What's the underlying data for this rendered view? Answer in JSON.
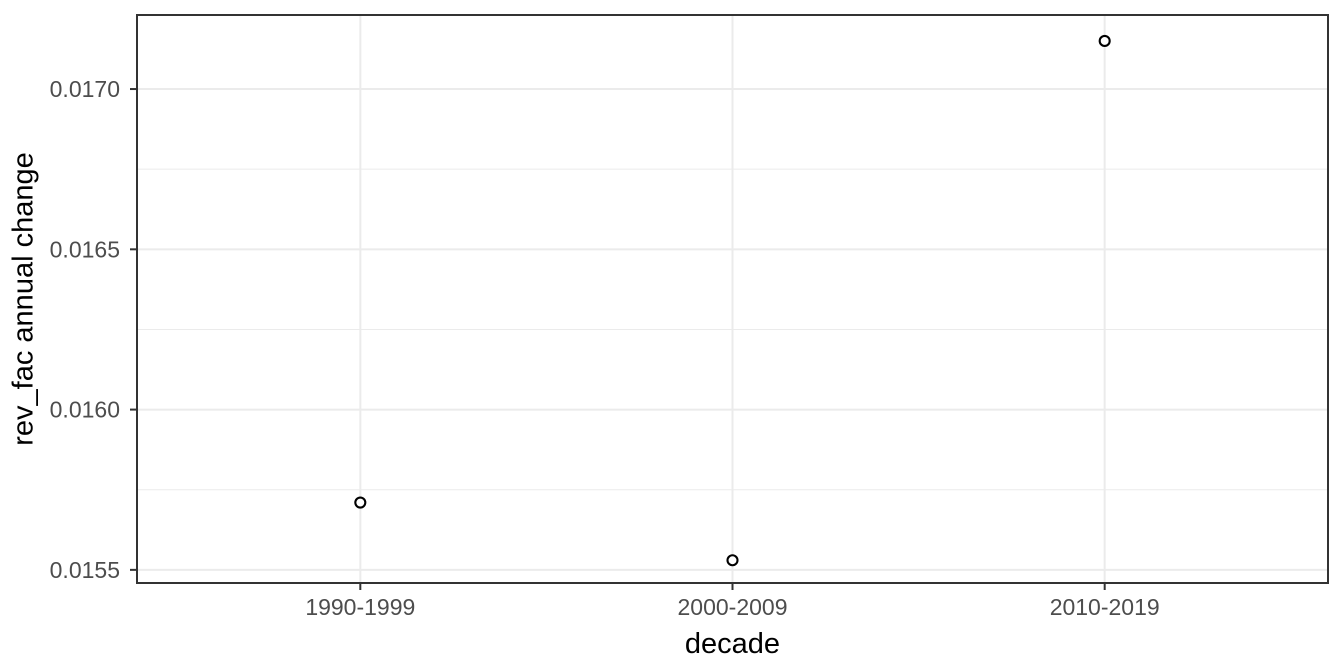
{
  "chart_data": {
    "type": "scatter",
    "title": "",
    "xlabel": "decade",
    "ylabel": "rev_fac annual change",
    "categories": [
      "1990-1999",
      "2000-2009",
      "2010-2019"
    ],
    "values": [
      0.01571,
      0.01553,
      0.01715
    ],
    "ylim": [
      0.015459,
      0.017231
    ],
    "y_major_ticks": [
      0.0155,
      0.016,
      0.0165,
      0.017
    ],
    "y_tick_labels": [
      "0.0155",
      "0.0160",
      "0.0165",
      "0.0170"
    ],
    "y_minor_ticks": [
      0.01575,
      0.01625,
      0.01675
    ],
    "grid": true,
    "legend": false,
    "style": {
      "background": "#ffffff",
      "panel_background": "#ffffff",
      "panel_border_color": "#333333",
      "grid_major_color": "#ebebeb",
      "grid_minor_color": "#ebebeb",
      "tick_color": "#333333",
      "tick_label_color": "#4d4d4d",
      "axis_title_color": "#000000",
      "point_stroke": "#000000",
      "point_fill": "#ffffff"
    }
  }
}
